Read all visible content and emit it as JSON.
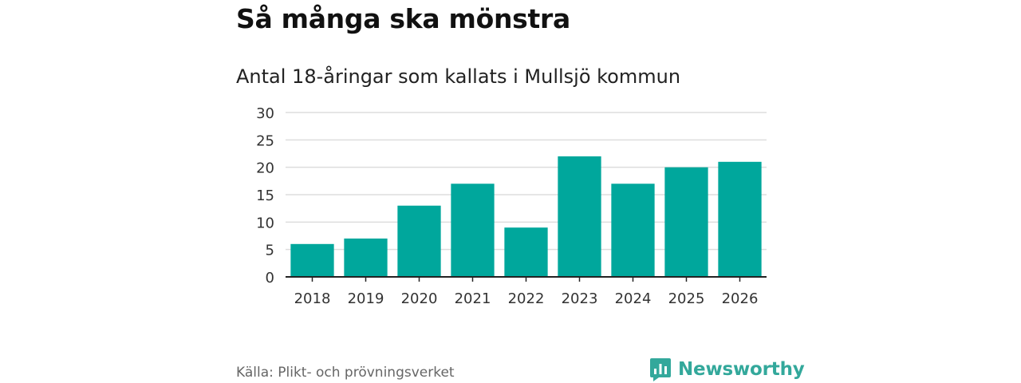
{
  "header": {
    "title": "Så många ska mönstra"
  },
  "footer": {
    "source": "Källa: Plikt- och prövningsverket",
    "brand": "Newsworthy",
    "brand_icon": "bar-chart-logo-icon"
  },
  "colors": {
    "bar": "#00a79c",
    "grid": "#dddddd",
    "axis": "#222222",
    "brand": "#33a89b"
  },
  "chart_data": {
    "type": "bar",
    "title": "Antal 18-åringar som kallats i Mullsjö kommun",
    "xlabel": "",
    "ylabel": "",
    "categories": [
      "2018",
      "2019",
      "2020",
      "2021",
      "2022",
      "2023",
      "2024",
      "2025",
      "2026"
    ],
    "values": [
      6,
      7,
      13,
      17,
      9,
      22,
      17,
      20,
      21
    ],
    "ylim": [
      0,
      30
    ],
    "yticks": [
      0,
      5,
      10,
      15,
      20,
      25,
      30
    ],
    "grid": true
  }
}
